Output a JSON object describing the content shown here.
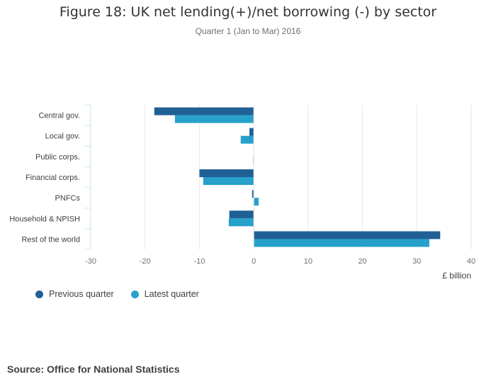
{
  "chart_data": {
    "type": "bar",
    "orientation": "horizontal",
    "title": "Figure 18: UK net lending(+)/net borrowing (-) by sector",
    "subtitle": "Quarter 1 (Jan to Mar) 2016",
    "categories": [
      "Central gov.",
      "Local gov.",
      "Public corps.",
      "Financial corps.",
      "PNFCs",
      "Household & NPISH",
      "Rest of the world"
    ],
    "series": [
      {
        "name": "Previous quarter",
        "color": "#206095",
        "values": [
          -18.3,
          -0.8,
          0.0,
          -10.0,
          -0.3,
          -4.5,
          34.3
        ]
      },
      {
        "name": "Latest quarter",
        "color": "#27a0cc",
        "values": [
          -14.5,
          -2.4,
          -0.1,
          -9.3,
          0.9,
          -4.6,
          32.3
        ]
      }
    ],
    "xlim": [
      -30,
      40
    ],
    "xticks": [
      -30,
      -20,
      -10,
      0,
      10,
      20,
      30,
      40
    ],
    "xlabel": "£ billion",
    "grid": true,
    "legend_position": "bottom-left"
  },
  "source": "Source: Office for National Statistics"
}
